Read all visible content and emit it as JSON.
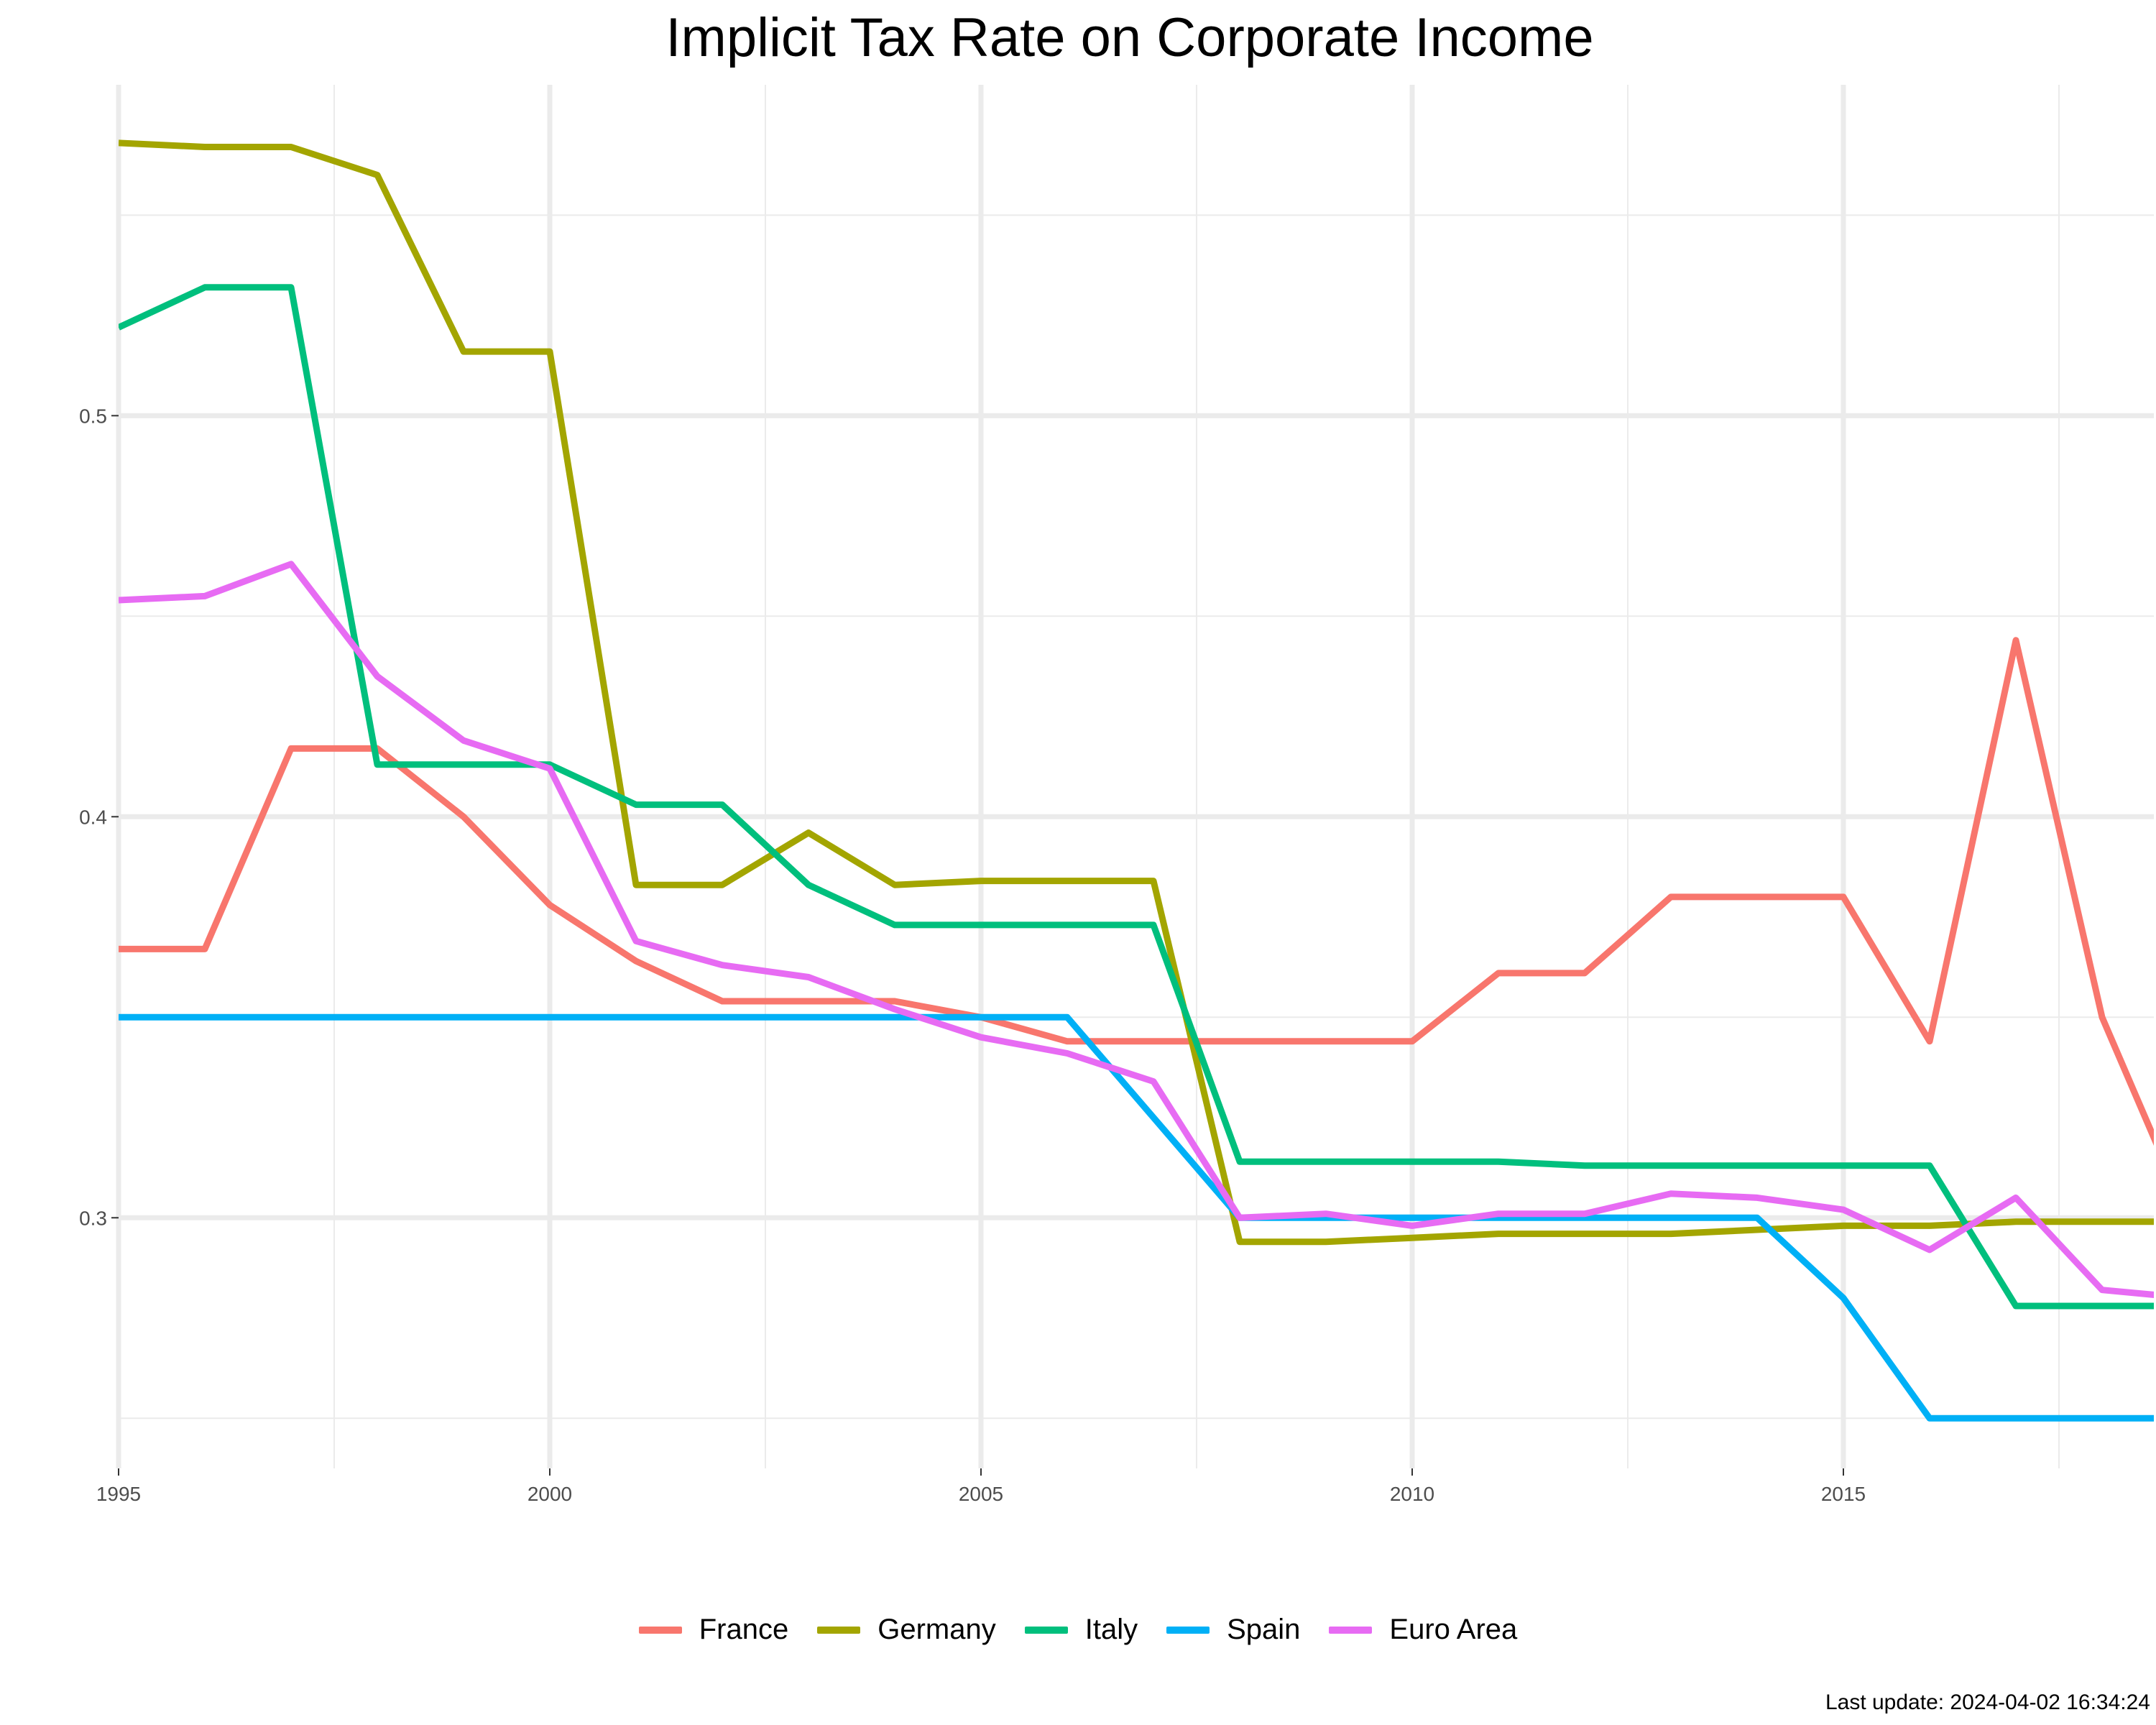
{
  "chart_data": {
    "type": "line",
    "title": "Implicit Tax Rate on Corporate Income",
    "xlabel": "",
    "ylabel": "",
    "xlim": [
      1995,
      2018.6
    ],
    "ylim": [
      0.2375,
      0.5825
    ],
    "x_ticks": [
      1995,
      2000,
      2005,
      2010,
      2015
    ],
    "y_ticks": [
      0.3,
      0.4,
      0.5
    ],
    "grid": true,
    "legend_position": "bottom",
    "x": [
      1995,
      1996,
      1997,
      1998,
      1999,
      2000,
      2001,
      2002,
      2003,
      2004,
      2005,
      2006,
      2007,
      2008,
      2009,
      2010,
      2011,
      2012,
      2013,
      2014,
      2015,
      2016,
      2017,
      2018,
      2019
    ],
    "series": [
      {
        "name": "France",
        "color": "#F8766D",
        "values": [
          0.367,
          0.367,
          0.417,
          0.417,
          0.4,
          0.378,
          0.364,
          0.354,
          0.354,
          0.354,
          0.35,
          0.344,
          0.344,
          0.344,
          0.344,
          0.344,
          0.361,
          0.361,
          0.38,
          0.38,
          0.38,
          0.344,
          0.444,
          0.35,
          0.3
        ]
      },
      {
        "name": "Germany",
        "color": "#A3A500",
        "values": [
          0.568,
          0.567,
          0.567,
          0.56,
          0.516,
          0.516,
          0.383,
          0.383,
          0.396,
          0.383,
          0.384,
          0.384,
          0.384,
          0.294,
          0.294,
          0.295,
          0.296,
          0.296,
          0.296,
          0.297,
          0.298,
          0.298,
          0.299,
          0.299,
          0.299
        ]
      },
      {
        "name": "Italy",
        "color": "#00BF7D",
        "values": [
          0.522,
          0.532,
          0.532,
          0.413,
          0.413,
          0.413,
          0.403,
          0.403,
          0.383,
          0.373,
          0.373,
          0.373,
          0.373,
          0.314,
          0.314,
          0.314,
          0.314,
          0.313,
          0.313,
          0.313,
          0.313,
          0.313,
          0.278,
          0.278,
          0.278
        ]
      },
      {
        "name": "Spain",
        "color": "#00B0F6",
        "values": [
          0.35,
          0.35,
          0.35,
          0.35,
          0.35,
          0.35,
          0.35,
          0.35,
          0.35,
          0.35,
          0.35,
          0.35,
          0.325,
          0.3,
          0.3,
          0.3,
          0.3,
          0.3,
          0.3,
          0.3,
          0.28,
          0.25,
          0.25,
          0.25,
          0.25
        ]
      },
      {
        "name": "Euro Area",
        "color": "#E76BF3",
        "values": [
          0.454,
          0.455,
          0.463,
          0.435,
          0.419,
          0.412,
          0.369,
          0.363,
          0.36,
          0.352,
          0.345,
          0.341,
          0.334,
          0.3,
          0.301,
          0.298,
          0.301,
          0.301,
          0.306,
          0.305,
          0.302,
          0.292,
          0.305,
          0.282,
          0.28
        ]
      }
    ],
    "footnote": "Last update: 2024-04-02 16:34:24"
  }
}
